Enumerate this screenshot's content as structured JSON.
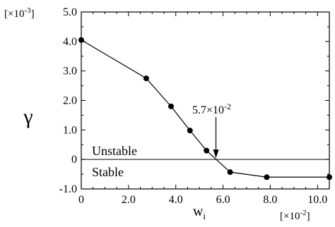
{
  "chart_data": {
    "type": "line",
    "ylabel": "γ",
    "xlabel_base": "w",
    "xlabel_sub": "i",
    "y_multiplier": {
      "prefix": "[×10",
      "exp": "-3",
      "suffix": "]"
    },
    "x_multiplier": {
      "prefix": "[×10",
      "exp": "-2",
      "suffix": "]"
    },
    "xlim": [
      0,
      10.5
    ],
    "ylim": [
      -1.0,
      5.0
    ],
    "x_ticks": [
      0,
      2.0,
      4.0,
      6.0,
      8.0,
      10.0
    ],
    "x_tick_labels": [
      "0",
      "2.0",
      "4.0",
      "6.0",
      "8.0",
      "10.0"
    ],
    "y_ticks": [
      -1.0,
      0,
      1.0,
      2.0,
      3.0,
      4.0,
      5.0
    ],
    "y_tick_labels": [
      "-1.0",
      "0",
      "1.0",
      "2.0",
      "3.0",
      "4.0",
      "5.0"
    ],
    "series": [
      {
        "x": [
          0.0,
          2.75,
          3.8,
          4.6,
          5.3,
          6.3,
          7.85,
          10.5
        ],
        "y": [
          4.05,
          2.75,
          1.8,
          0.98,
          0.3,
          -0.43,
          -0.6,
          -0.6
        ],
        "color": "#000000"
      }
    ],
    "annotations": {
      "threshold": {
        "base": "5.7×10",
        "exp": "-2",
        "x": 5.7,
        "y": 0.0
      },
      "region_upper": "Unstable",
      "region_lower": "Stable"
    },
    "grid": false
  }
}
